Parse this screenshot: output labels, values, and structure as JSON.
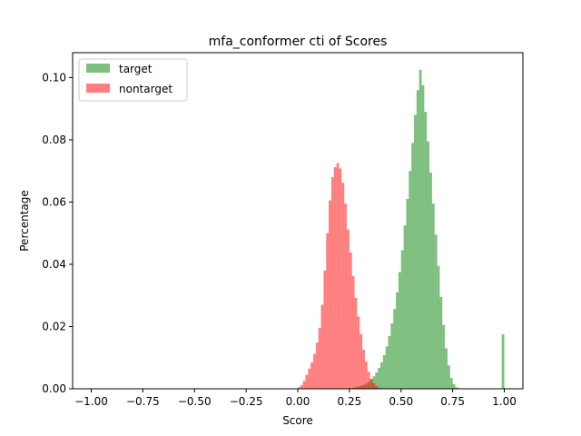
{
  "chart_data": {
    "type": "bar",
    "title": "mfa_conformer cti of Scores",
    "xlabel": "Score",
    "ylabel": "Percentage",
    "xlim": [
      -1.09,
      1.09
    ],
    "ylim": [
      0,
      0.108
    ],
    "grid": false,
    "legend": "top-left",
    "bin_width": 0.0125,
    "x_ticks": [
      -1.0,
      -0.75,
      -0.5,
      -0.25,
      0.0,
      0.25,
      0.5,
      0.75,
      1.0
    ],
    "x_tick_labels": [
      "−1.00",
      "−0.75",
      "−0.50",
      "−0.25",
      "0.00",
      "0.25",
      "0.50",
      "0.75",
      "1.00"
    ],
    "y_ticks": [
      0.0,
      0.02,
      0.04,
      0.06,
      0.08,
      0.1
    ],
    "y_tick_labels": [
      "0.00",
      "0.02",
      "0.04",
      "0.06",
      "0.08",
      "0.10"
    ],
    "series": [
      {
        "name": "target",
        "color": "#008000",
        "opacity": 0.5,
        "bin_start": 0.25,
        "values": [
          0.0002,
          0.0003,
          0.0005,
          0.0007,
          0.0009,
          0.0012,
          0.0016,
          0.0022,
          0.003,
          0.004,
          0.0052,
          0.0067,
          0.0085,
          0.0108,
          0.0136,
          0.017,
          0.021,
          0.0256,
          0.031,
          0.0375,
          0.0445,
          0.0525,
          0.061,
          0.07,
          0.079,
          0.088,
          0.096,
          0.1025,
          0.0975,
          0.089,
          0.0795,
          0.0695,
          0.0595,
          0.0495,
          0.0395,
          0.0295,
          0.0205,
          0.013,
          0.0075,
          0.0035,
          0.0015,
          0.0005,
          0.0002,
          0.0001,
          0.0,
          0.0,
          0.0,
          0.0,
          0.0,
          0.0,
          0.0,
          0.0,
          0.0,
          0.0,
          0.0,
          0.0,
          0.0,
          0.0,
          0.0,
          0.0,
          0.0,
          0.0,
          0.0,
          0.0,
          0.0,
          0.0,
          0.0,
          0.0,
          0.0,
          0.0,
          0.0,
          0.0,
          0.0,
          0.0,
          0.0,
          0.0,
          0.0,
          0.0,
          0.0
        ],
        "extra_bins": [
          {
            "x": 0.9875,
            "value": 0.0175
          }
        ]
      },
      {
        "name": "nontarget",
        "color": "#ff0000",
        "opacity": 0.5,
        "bin_start": 0.0,
        "values": [
          0.0005,
          0.0012,
          0.0025,
          0.0045,
          0.0065,
          0.0085,
          0.0112,
          0.0148,
          0.0195,
          0.027,
          0.038,
          0.05,
          0.0605,
          0.068,
          0.0712,
          0.0725,
          0.0708,
          0.0662,
          0.0595,
          0.0512,
          0.0438,
          0.0362,
          0.0292,
          0.0232,
          0.0176,
          0.0126,
          0.0088,
          0.0055,
          0.0032,
          0.0018,
          0.0009,
          0.0004,
          0.0002,
          0.0001,
          0.0001
        ]
      }
    ]
  }
}
